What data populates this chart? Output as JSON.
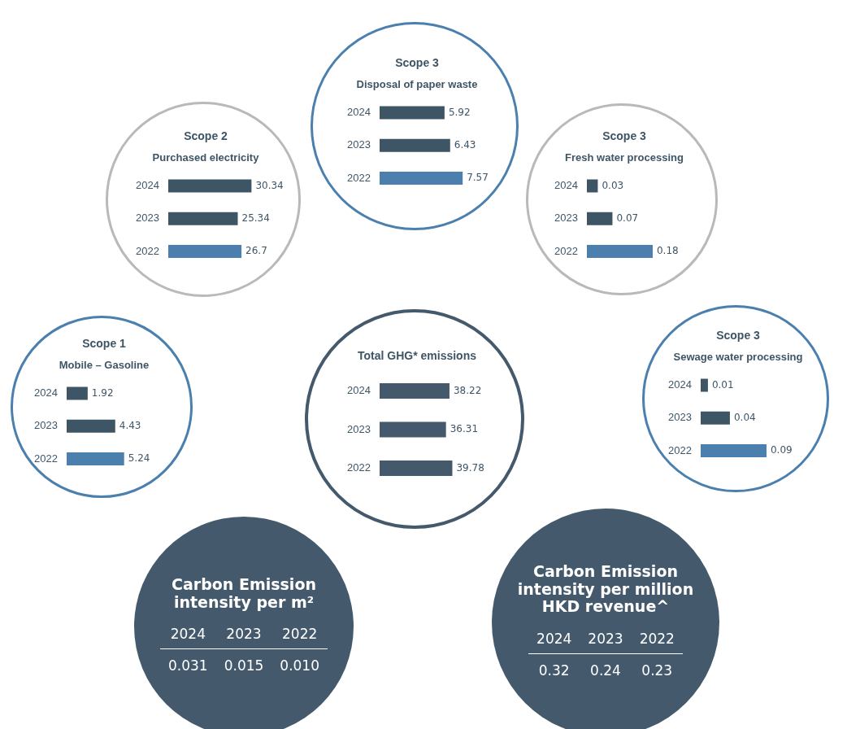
{
  "chart_data": [
    {
      "type": "bar",
      "orientation": "horizontal",
      "title": "Scope 1",
      "subtitle": "Mobile – Gasoline",
      "categories": [
        "2024",
        "2023",
        "2022"
      ],
      "values": [
        1.92,
        4.43,
        5.24
      ],
      "colors": [
        "#3e5566",
        "#3e5566",
        "#4a7fae"
      ],
      "data_labels": true
    },
    {
      "type": "bar",
      "orientation": "horizontal",
      "title": "Scope 2",
      "subtitle": "Purchased electricity",
      "categories": [
        "2024",
        "2023",
        "2022"
      ],
      "values": [
        30.34,
        25.34,
        26.7
      ],
      "colors": [
        "#3e5566",
        "#3e5566",
        "#4a7fae"
      ],
      "data_labels": true
    },
    {
      "type": "bar",
      "orientation": "horizontal",
      "title": "Scope 3",
      "subtitle": "Disposal of paper waste",
      "categories": [
        "2024",
        "2023",
        "2022"
      ],
      "values": [
        5.92,
        6.43,
        7.57
      ],
      "colors": [
        "#3e5566",
        "#3e5566",
        "#4a7fae"
      ],
      "data_labels": true
    },
    {
      "type": "bar",
      "orientation": "horizontal",
      "title": "Scope 3",
      "subtitle": "Fresh water processing",
      "categories": [
        "2024",
        "2023",
        "2022"
      ],
      "values": [
        0.03,
        0.07,
        0.18
      ],
      "colors": [
        "#3e5566",
        "#3e5566",
        "#4a7fae"
      ],
      "data_labels": true
    },
    {
      "type": "bar",
      "orientation": "horizontal",
      "title": "Scope 3",
      "subtitle": "Sewage water processing",
      "categories": [
        "2024",
        "2023",
        "2022"
      ],
      "values": [
        0.01,
        0.04,
        0.09
      ],
      "colors": [
        "#3e5566",
        "#3e5566",
        "#4a7fae"
      ],
      "data_labels": true
    },
    {
      "type": "bar",
      "orientation": "horizontal",
      "title": "Total GHG* emissions",
      "categories": [
        "2024",
        "2023",
        "2022"
      ],
      "values": [
        38.22,
        36.31,
        39.78
      ],
      "colors": [
        "#445a6c",
        "#445a6c",
        "#445a6c"
      ],
      "data_labels": true
    },
    {
      "type": "other",
      "title": "Carbon Emission intensity per m²",
      "categories": [
        "2024",
        "2023",
        "2022"
      ],
      "values": [
        0.031,
        0.015,
        0.01
      ],
      "value_labels": [
        "0.031",
        "0.015",
        "0.010"
      ]
    },
    {
      "type": "other",
      "title": "Carbon Emission intensity per million HKD revenue^",
      "categories": [
        "2024",
        "2023",
        "2022"
      ],
      "values": [
        0.32,
        0.24,
        0.23
      ],
      "value_labels": [
        "0.32",
        "0.24",
        "0.23"
      ]
    }
  ]
}
